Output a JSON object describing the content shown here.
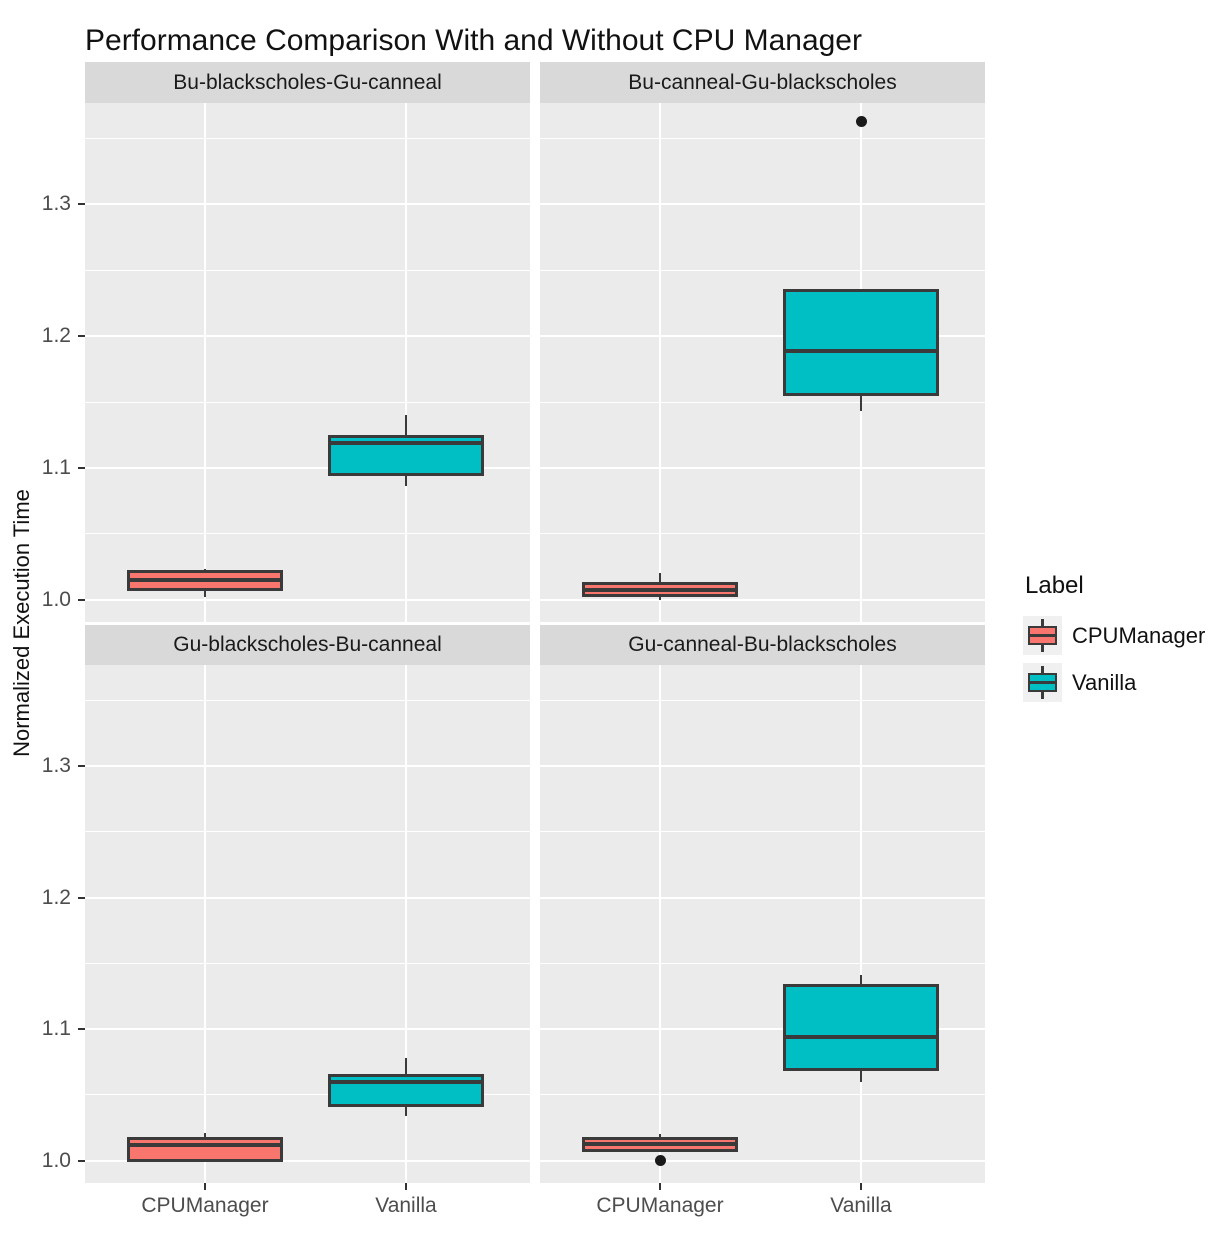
{
  "chart_data": {
    "type": "boxplot",
    "title": "Performance Comparison With and Without CPU Manager",
    "ylabel": "Normalized Execution Time",
    "legend_title": "Label",
    "legend_position": "right",
    "grid": true,
    "x_categories": [
      "CPUManager",
      "Vanilla"
    ],
    "y_tick_labels": [
      "1.0",
      "1.1",
      "1.2",
      "1.3"
    ],
    "y_tick_values": [
      1.0,
      1.1,
      1.2,
      1.3
    ],
    "y_minor_values": [
      1.05,
      1.15,
      1.25,
      1.35
    ],
    "y_domain": [
      0.983,
      1.377
    ],
    "series": [
      {
        "name": "CPUManager",
        "color": "#F8766D"
      },
      {
        "name": "Vanilla",
        "color": "#00BFC4"
      }
    ],
    "facets": [
      {
        "label": "Bu-blackscholes-Gu-canneal",
        "boxes": [
          {
            "group": "CPUManager",
            "min": 1.002,
            "q1": 1.008,
            "median": 1.015,
            "q3": 1.021,
            "max": 1.023,
            "outliers": []
          },
          {
            "group": "Vanilla",
            "min": 1.086,
            "q1": 1.095,
            "median": 1.119,
            "q3": 1.124,
            "max": 1.14,
            "outliers": []
          }
        ]
      },
      {
        "label": "Bu-canneal-Gu-blackscholes",
        "boxes": [
          {
            "group": "CPUManager",
            "min": 1.0,
            "q1": 1.003,
            "median": 1.007,
            "q3": 1.012,
            "max": 1.02,
            "outliers": []
          },
          {
            "group": "Vanilla",
            "min": 1.143,
            "q1": 1.156,
            "median": 1.189,
            "q3": 1.235,
            "max": 1.235,
            "outliers": [
              1.363
            ]
          }
        ]
      },
      {
        "label": "Gu-blackscholes-Bu-canneal",
        "boxes": [
          {
            "group": "CPUManager",
            "min": 0.999,
            "q1": 1.0,
            "median": 1.012,
            "q3": 1.017,
            "max": 1.021,
            "outliers": []
          },
          {
            "group": "Vanilla",
            "min": 1.034,
            "q1": 1.042,
            "median": 1.06,
            "q3": 1.065,
            "max": 1.078,
            "outliers": []
          }
        ]
      },
      {
        "label": "Gu-canneal-Bu-blackscholes",
        "boxes": [
          {
            "group": "CPUManager",
            "min": 1.008,
            "q1": 1.008,
            "median": 1.013,
            "q3": 1.017,
            "max": 1.02,
            "outliers": [
              1.0
            ]
          },
          {
            "group": "Vanilla",
            "min": 1.06,
            "q1": 1.069,
            "median": 1.094,
            "q3": 1.133,
            "max": 1.141,
            "outliers": []
          }
        ]
      }
    ],
    "colors": {
      "panel_bg": "#EBEBEB",
      "strip_bg": "#D9D9D9",
      "grid": "#FFFFFF",
      "box_border": "#3A3A3A",
      "tick_text": "#4D4D4D",
      "outlier": "#1A1A1A"
    }
  }
}
